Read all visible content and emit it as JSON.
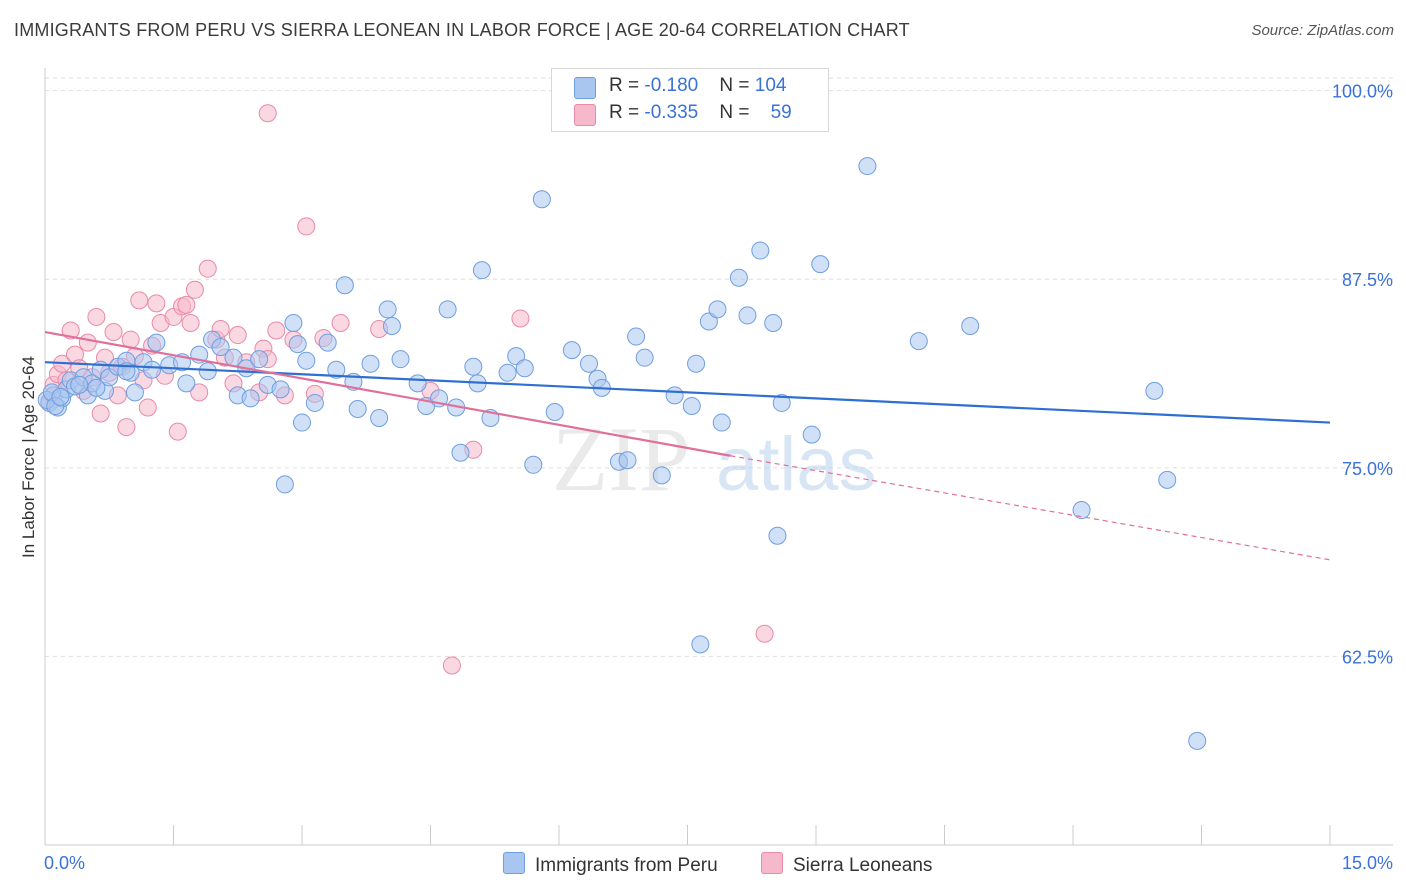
{
  "title": "IMMIGRANTS FROM PERU VS SIERRA LEONEAN IN LABOR FORCE | AGE 20-64 CORRELATION CHART",
  "source": "Source: ZipAtlas.com",
  "watermark": {
    "zip": "ZIP",
    "atlas": "atlas"
  },
  "legend": {
    "blue": {
      "r_label": "R = ",
      "r_value": "-0.180",
      "n_label": "N = ",
      "n_value": "104"
    },
    "pink": {
      "r_label": "R = ",
      "r_value": "-0.335",
      "n_label": "N = ",
      "n_value": "59"
    }
  },
  "colors": {
    "blue_fill": "#a9c6f0",
    "blue_stroke": "#6f9ee0",
    "blue_line": "#2e6fd0",
    "pink_fill": "#f6b8cb",
    "pink_stroke": "#e98aa8",
    "pink_line": "#e0709a",
    "tick_label": "#3a72d8",
    "grid": "#dddddd"
  },
  "chart_data": {
    "type": "scatter",
    "title": "IMMIGRANTS FROM PERU VS SIERRA LEONEAN IN LABOR FORCE | AGE 20-64 CORRELATION CHART",
    "xlabel": "",
    "ylabel": "In Labor Force | Age 20-64",
    "xlim": [
      0,
      15
    ],
    "ylim": [
      50,
      101.5
    ],
    "x_tick_labels": [
      "0.0%",
      "15.0%"
    ],
    "y_ticks": [
      62.5,
      75.0,
      87.5,
      100.0
    ],
    "y_tick_labels": [
      "62.5%",
      "75.0%",
      "87.5%",
      "100.0%"
    ],
    "series": [
      {
        "name": "Immigrants from Peru",
        "color": "blue",
        "trend": {
          "x0": 0,
          "y0": 82.0,
          "x1": 15,
          "y1": 78.0
        },
        "points": [
          [
            0.05,
            79.3
          ],
          [
            0.1,
            79.8
          ],
          [
            0.15,
            79.0
          ],
          [
            0.2,
            79.6
          ],
          [
            0.25,
            80.2
          ],
          [
            0.3,
            80.8
          ],
          [
            0.35,
            80.4
          ],
          [
            0.45,
            81.0
          ],
          [
            0.5,
            79.8
          ],
          [
            0.55,
            80.6
          ],
          [
            0.65,
            81.5
          ],
          [
            0.7,
            80.1
          ],
          [
            0.75,
            81.0
          ],
          [
            0.85,
            81.7
          ],
          [
            0.95,
            82.1
          ],
          [
            1.0,
            81.3
          ],
          [
            1.05,
            80.0
          ],
          [
            1.15,
            82.0
          ],
          [
            1.25,
            81.5
          ],
          [
            1.3,
            83.3
          ],
          [
            1.45,
            81.8
          ],
          [
            1.6,
            82.0
          ],
          [
            1.65,
            80.6
          ],
          [
            1.8,
            82.5
          ],
          [
            1.9,
            81.4
          ],
          [
            1.95,
            83.5
          ],
          [
            2.05,
            83.0
          ],
          [
            2.2,
            82.3
          ],
          [
            2.25,
            79.8
          ],
          [
            2.35,
            81.6
          ],
          [
            2.4,
            79.6
          ],
          [
            2.5,
            82.2
          ],
          [
            2.6,
            80.5
          ],
          [
            2.75,
            80.2
          ],
          [
            2.8,
            73.9
          ],
          [
            2.9,
            84.6
          ],
          [
            2.95,
            83.2
          ],
          [
            3.0,
            78.0
          ],
          [
            3.05,
            82.1
          ],
          [
            3.15,
            79.3
          ],
          [
            3.3,
            83.3
          ],
          [
            3.4,
            81.5
          ],
          [
            3.5,
            87.1
          ],
          [
            3.6,
            80.7
          ],
          [
            3.65,
            78.9
          ],
          [
            3.8,
            81.9
          ],
          [
            3.9,
            78.3
          ],
          [
            4.0,
            85.5
          ],
          [
            4.05,
            84.4
          ],
          [
            4.15,
            82.2
          ],
          [
            4.35,
            80.6
          ],
          [
            4.45,
            79.1
          ],
          [
            4.6,
            79.6
          ],
          [
            4.7,
            85.5
          ],
          [
            4.8,
            79.0
          ],
          [
            4.85,
            76.0
          ],
          [
            5.0,
            81.7
          ],
          [
            5.05,
            80.6
          ],
          [
            5.1,
            88.1
          ],
          [
            5.2,
            78.3
          ],
          [
            5.4,
            81.3
          ],
          [
            5.5,
            82.4
          ],
          [
            5.6,
            81.6
          ],
          [
            5.7,
            75.2
          ],
          [
            5.8,
            92.8
          ],
          [
            5.95,
            78.7
          ],
          [
            6.15,
            82.8
          ],
          [
            6.35,
            81.9
          ],
          [
            6.45,
            80.9
          ],
          [
            6.5,
            80.3
          ],
          [
            6.7,
            75.4
          ],
          [
            6.8,
            75.5
          ],
          [
            6.9,
            83.7
          ],
          [
            7.0,
            82.3
          ],
          [
            7.2,
            74.5
          ],
          [
            7.35,
            79.8
          ],
          [
            7.55,
            79.1
          ],
          [
            7.6,
            81.9
          ],
          [
            7.65,
            63.3
          ],
          [
            7.75,
            84.7
          ],
          [
            7.85,
            85.5
          ],
          [
            7.9,
            78.0
          ],
          [
            8.1,
            87.6
          ],
          [
            8.2,
            85.1
          ],
          [
            8.35,
            89.4
          ],
          [
            8.5,
            84.6
          ],
          [
            8.55,
            70.5
          ],
          [
            8.6,
            79.3
          ],
          [
            8.95,
            77.2
          ],
          [
            9.05,
            88.5
          ],
          [
            9.6,
            95.0
          ],
          [
            10.2,
            83.4
          ],
          [
            10.8,
            84.4
          ],
          [
            12.1,
            72.2
          ],
          [
            12.95,
            80.1
          ],
          [
            13.1,
            74.2
          ],
          [
            13.45,
            56.9
          ],
          [
            0.02,
            79.5
          ],
          [
            0.08,
            80.0
          ],
          [
            0.12,
            79.1
          ],
          [
            0.18,
            79.7
          ],
          [
            0.4,
            80.5
          ],
          [
            0.6,
            80.3
          ],
          [
            0.95,
            81.4
          ]
        ]
      },
      {
        "name": "Sierra Leoneans",
        "color": "pink",
        "trend": {
          "x0": 0,
          "y0": 84.0,
          "x1": 8.0,
          "y1": 75.8,
          "dash_x1": 15,
          "dash_y1": 68.9
        },
        "points": [
          [
            0.05,
            79.4
          ],
          [
            0.1,
            80.5
          ],
          [
            0.15,
            81.2
          ],
          [
            0.2,
            81.9
          ],
          [
            0.25,
            80.8
          ],
          [
            0.3,
            84.1
          ],
          [
            0.35,
            82.5
          ],
          [
            0.4,
            81.6
          ],
          [
            0.45,
            80.1
          ],
          [
            0.5,
            83.3
          ],
          [
            0.55,
            81.0
          ],
          [
            0.6,
            85.0
          ],
          [
            0.65,
            78.6
          ],
          [
            0.7,
            82.3
          ],
          [
            0.75,
            81.3
          ],
          [
            0.8,
            84.0
          ],
          [
            0.85,
            79.8
          ],
          [
            0.9,
            81.7
          ],
          [
            0.95,
            77.7
          ],
          [
            1.0,
            83.5
          ],
          [
            1.05,
            82.4
          ],
          [
            1.1,
            86.1
          ],
          [
            1.15,
            80.8
          ],
          [
            1.2,
            79.0
          ],
          [
            1.25,
            83.1
          ],
          [
            1.3,
            85.9
          ],
          [
            1.35,
            84.6
          ],
          [
            1.4,
            81.1
          ],
          [
            1.5,
            85.0
          ],
          [
            1.55,
            77.4
          ],
          [
            1.6,
            85.7
          ],
          [
            1.65,
            85.8
          ],
          [
            1.7,
            84.6
          ],
          [
            1.75,
            86.8
          ],
          [
            1.8,
            80.0
          ],
          [
            1.9,
            88.2
          ],
          [
            2.0,
            83.5
          ],
          [
            2.05,
            84.2
          ],
          [
            2.1,
            82.3
          ],
          [
            2.2,
            80.6
          ],
          [
            2.25,
            83.8
          ],
          [
            2.35,
            82.0
          ],
          [
            2.5,
            80.0
          ],
          [
            2.55,
            82.9
          ],
          [
            2.6,
            82.2
          ],
          [
            2.7,
            84.1
          ],
          [
            2.8,
            79.8
          ],
          [
            2.9,
            83.5
          ],
          [
            3.05,
            91.0
          ],
          [
            3.15,
            79.9
          ],
          [
            3.25,
            83.6
          ],
          [
            3.45,
            84.6
          ],
          [
            3.9,
            84.2
          ],
          [
            4.5,
            80.1
          ],
          [
            5.0,
            76.2
          ],
          [
            5.55,
            84.9
          ],
          [
            8.4,
            64.0
          ],
          [
            2.6,
            98.5
          ],
          [
            4.75,
            61.9
          ]
        ]
      }
    ]
  }
}
